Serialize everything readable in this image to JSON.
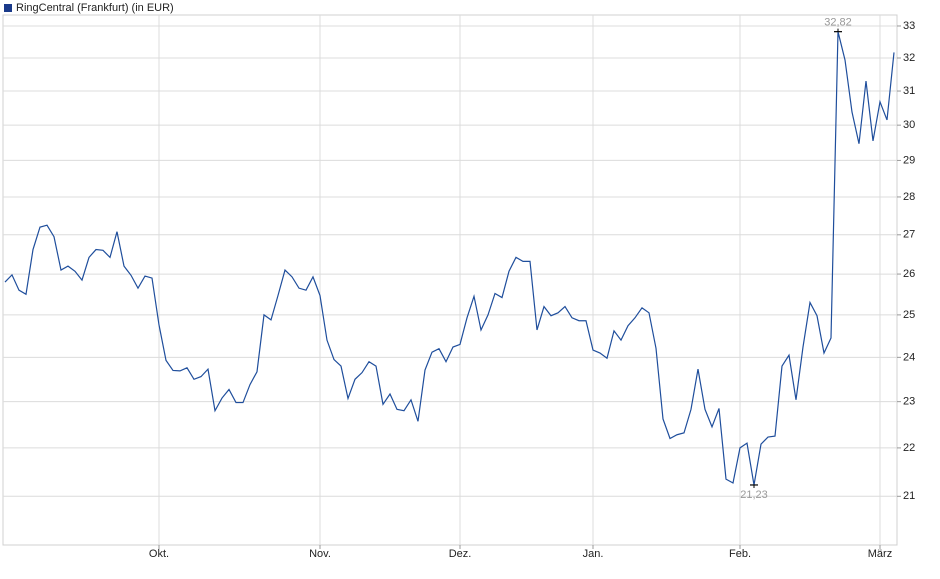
{
  "chart_data": {
    "type": "line",
    "log_scale": true,
    "grid": true,
    "legend": "top-left",
    "categories": [
      null,
      null,
      null,
      null,
      null,
      null,
      null,
      null,
      null,
      null,
      null,
      null,
      null,
      null,
      null,
      null,
      null,
      null,
      null,
      null,
      null,
      null,
      "Okt.",
      null,
      null,
      null,
      null,
      null,
      null,
      null,
      null,
      null,
      null,
      null,
      null,
      null,
      null,
      null,
      null,
      null,
      null,
      null,
      null,
      null,
      null,
      "Nov.",
      null,
      null,
      null,
      null,
      null,
      null,
      null,
      null,
      null,
      null,
      null,
      null,
      null,
      null,
      null,
      null,
      null,
      null,
      null,
      "Dez.",
      null,
      null,
      null,
      null,
      null,
      null,
      null,
      null,
      null,
      null,
      null,
      null,
      null,
      null,
      null,
      null,
      null,
      null,
      "Jan.",
      null,
      null,
      null,
      null,
      null,
      null,
      null,
      null,
      null,
      null,
      null,
      null,
      null,
      null,
      null,
      null,
      null,
      null,
      null,
      null,
      "Feb.",
      null,
      null,
      null,
      null,
      null,
      null,
      null,
      null,
      null,
      null,
      null,
      null,
      null,
      null,
      null,
      null,
      null,
      null,
      null,
      "März",
      null,
      null
    ],
    "series": [
      {
        "name": "RingCentral (Frankfurt) (in EUR)",
        "color": "#1f4e9c",
        "legend_color": "#1a3a8a",
        "values": [
          25.8,
          25.98,
          25.6,
          25.5,
          26.62,
          27.2,
          27.25,
          26.95,
          26.1,
          26.2,
          26.07,
          25.85,
          26.42,
          26.62,
          26.6,
          26.42,
          27.08,
          26.2,
          25.97,
          25.65,
          25.95,
          25.9,
          24.76,
          23.93,
          23.7,
          23.69,
          23.76,
          23.5,
          23.56,
          23.73,
          22.8,
          23.08,
          23.27,
          22.98,
          22.98,
          23.38,
          23.67,
          25.0,
          24.88,
          25.47,
          26.1,
          25.93,
          25.65,
          25.6,
          25.93,
          25.47,
          24.4,
          23.95,
          23.8,
          23.07,
          23.5,
          23.65,
          23.9,
          23.8,
          22.94,
          23.17,
          22.83,
          22.8,
          23.04,
          22.57,
          23.71,
          24.12,
          24.2,
          23.9,
          24.24,
          24.3,
          24.93,
          25.45,
          24.64,
          25.0,
          25.52,
          25.42,
          26.07,
          26.42,
          26.32,
          26.32,
          24.64,
          25.2,
          24.98,
          25.05,
          25.2,
          24.93,
          24.86,
          24.86,
          24.17,
          24.1,
          23.98,
          24.62,
          24.4,
          24.74,
          24.93,
          25.17,
          25.05,
          24.21,
          22.62,
          22.2,
          22.28,
          22.32,
          22.83,
          23.73,
          22.83,
          22.45,
          22.85,
          21.35,
          21.27,
          22.0,
          22.1,
          21.23,
          22.08,
          22.23,
          22.25,
          23.8,
          24.05,
          23.04,
          24.24,
          25.3,
          24.98,
          24.1,
          24.45,
          32.82,
          31.94,
          30.38,
          29.47,
          31.3,
          29.55,
          30.68,
          30.15,
          32.17
        ],
        "value_labels": [
          null,
          null,
          null,
          null,
          null,
          null,
          null,
          null,
          null,
          null,
          null,
          null,
          null,
          null,
          null,
          null,
          null,
          null,
          null,
          null,
          null,
          null,
          null,
          null,
          null,
          null,
          null,
          null,
          null,
          null,
          null,
          null,
          null,
          null,
          null,
          null,
          null,
          null,
          null,
          null,
          null,
          null,
          null,
          null,
          null,
          null,
          null,
          null,
          null,
          null,
          null,
          null,
          null,
          null,
          null,
          null,
          null,
          null,
          null,
          null,
          null,
          null,
          null,
          null,
          null,
          null,
          null,
          null,
          null,
          null,
          null,
          null,
          null,
          null,
          null,
          null,
          null,
          null,
          null,
          null,
          null,
          null,
          null,
          null,
          null,
          null,
          null,
          null,
          null,
          null,
          null,
          null,
          null,
          null,
          null,
          null,
          null,
          null,
          null,
          null,
          null,
          null,
          null,
          null,
          null,
          null,
          null,
          "21,23",
          null,
          null,
          null,
          null,
          null,
          null,
          null,
          null,
          null,
          null,
          null,
          "32,82",
          null,
          null,
          null,
          null,
          null,
          null,
          null,
          null
        ]
      }
    ],
    "ylim": [
      20.04,
      33.35
    ],
    "yticks": [
      21,
      22,
      23,
      24,
      25,
      26,
      27,
      28,
      29,
      30,
      31,
      32,
      33
    ]
  }
}
